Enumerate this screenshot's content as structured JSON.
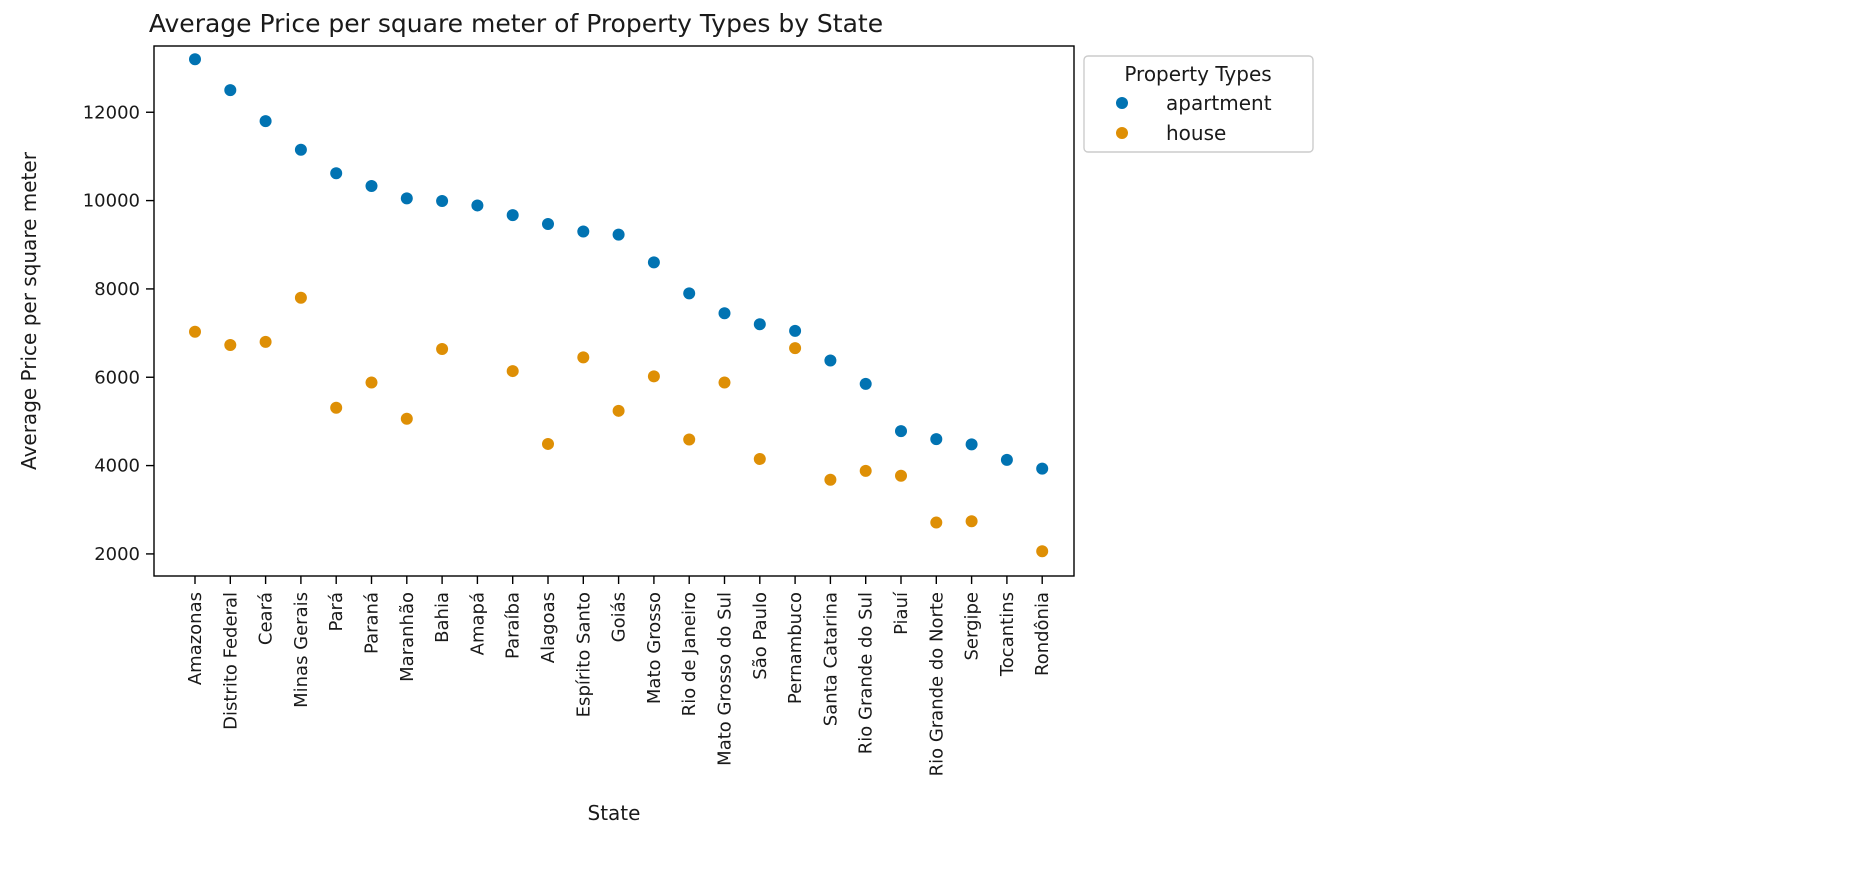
{
  "chart_data": {
    "type": "scatter",
    "title": "Average Price per square meter of Property Types by State",
    "xlabel": "State",
    "ylabel": "Average Price per square meter",
    "ylim": [
      1500,
      13500
    ],
    "yticks": [
      2000,
      4000,
      6000,
      8000,
      10000,
      12000
    ],
    "grid": false,
    "legend": {
      "title": "Property Types",
      "placement": "outside-top-right"
    },
    "categories": [
      "Amazonas",
      "Distrito Federal",
      "Ceará",
      "Minas Gerais",
      "Pará",
      "Paraná",
      "Maranhão",
      "Bahia",
      "Amapá",
      "Paraíba",
      "Alagoas",
      "Espírito Santo",
      "Goiás",
      "Mato Grosso",
      "Rio de Janeiro",
      "Mato Grosso do Sul",
      "São Paulo",
      "Pernambuco",
      "Santa Catarina",
      "Rio Grande do Sul",
      "Piauí",
      "Rio Grande do Norte",
      "Sergipe",
      "Tocantins",
      "Rondônia"
    ],
    "series": [
      {
        "name": "apartment",
        "color": "#0173b2",
        "values": [
          13200,
          12500,
          11800,
          11150,
          10620,
          10330,
          10050,
          9990,
          9890,
          9670,
          9470,
          9300,
          9230,
          8600,
          7900,
          7450,
          7200,
          7050,
          6380,
          5850,
          4780,
          4600,
          4480,
          4130,
          3930
        ]
      },
      {
        "name": "house",
        "color": "#de8f05",
        "values": [
          7030,
          6730,
          6800,
          7800,
          null,
          null,
          5060,
          6640,
          null,
          6140,
          4490,
          6450,
          5240,
          6020,
          4590,
          5880,
          4150,
          6660,
          3680,
          3880,
          3770,
          2710,
          2740,
          null,
          2060
        ],
        "values_extra": {
          "Pará": 5310,
          "Paraná": 5880
        }
      }
    ]
  }
}
